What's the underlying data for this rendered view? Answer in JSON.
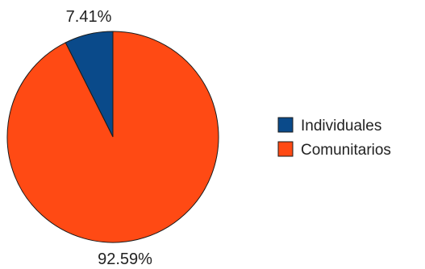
{
  "chart_data": {
    "type": "pie",
    "slices": [
      {
        "label": "Individuales",
        "value": 7.41,
        "display": "7.41%",
        "color": "#0a4a8a"
      },
      {
        "label": "Comunitarios",
        "value": 92.59,
        "display": "92.59%",
        "color": "#ff4a14"
      }
    ],
    "legend_position": "right"
  }
}
